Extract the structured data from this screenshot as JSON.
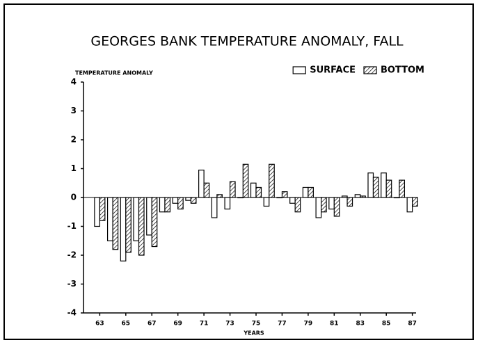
{
  "chart_data": {
    "type": "bar",
    "title": "GEORGES BANK TEMPERATURE ANOMALY, FALL",
    "y_label": "TEMPERATURE ANOMALY",
    "x_label": "YEARS",
    "categories": [
      "63",
      null,
      "65",
      null,
      "67",
      null,
      "69",
      null,
      "71",
      null,
      "73",
      null,
      "75",
      null,
      "77",
      null,
      "79",
      null,
      "81",
      null,
      "83",
      null,
      "85",
      null,
      "87"
    ],
    "series": [
      {
        "name": "SURFACE",
        "color": "#000000",
        "hatch": false,
        "values": [
          -1.0,
          -1.5,
          -2.2,
          -1.5,
          -1.3,
          -0.5,
          -0.2,
          -0.1,
          0.95,
          -0.7,
          -0.4,
          0.0,
          0.5,
          -0.3,
          0.0,
          -0.2,
          0.35,
          -0.7,
          -0.4,
          0.05,
          0.1,
          0.85,
          0.85,
          0.0,
          -0.5
        ]
      },
      {
        "name": "BOTTOM",
        "color": "#000000",
        "hatch": true,
        "values": [
          -0.8,
          -1.8,
          -1.9,
          -2.0,
          -1.7,
          -0.5,
          -0.4,
          -0.2,
          0.5,
          0.1,
          0.55,
          1.15,
          0.35,
          1.15,
          0.2,
          -0.5,
          0.35,
          -0.5,
          -0.65,
          -0.3,
          0.05,
          0.7,
          0.6,
          0.6,
          -0.3
        ]
      }
    ],
    "ylim": [
      -4,
      4
    ],
    "yticks": [
      -4,
      -3,
      -2,
      -1,
      0,
      1,
      2,
      3,
      4
    ],
    "legend": "top-right"
  }
}
